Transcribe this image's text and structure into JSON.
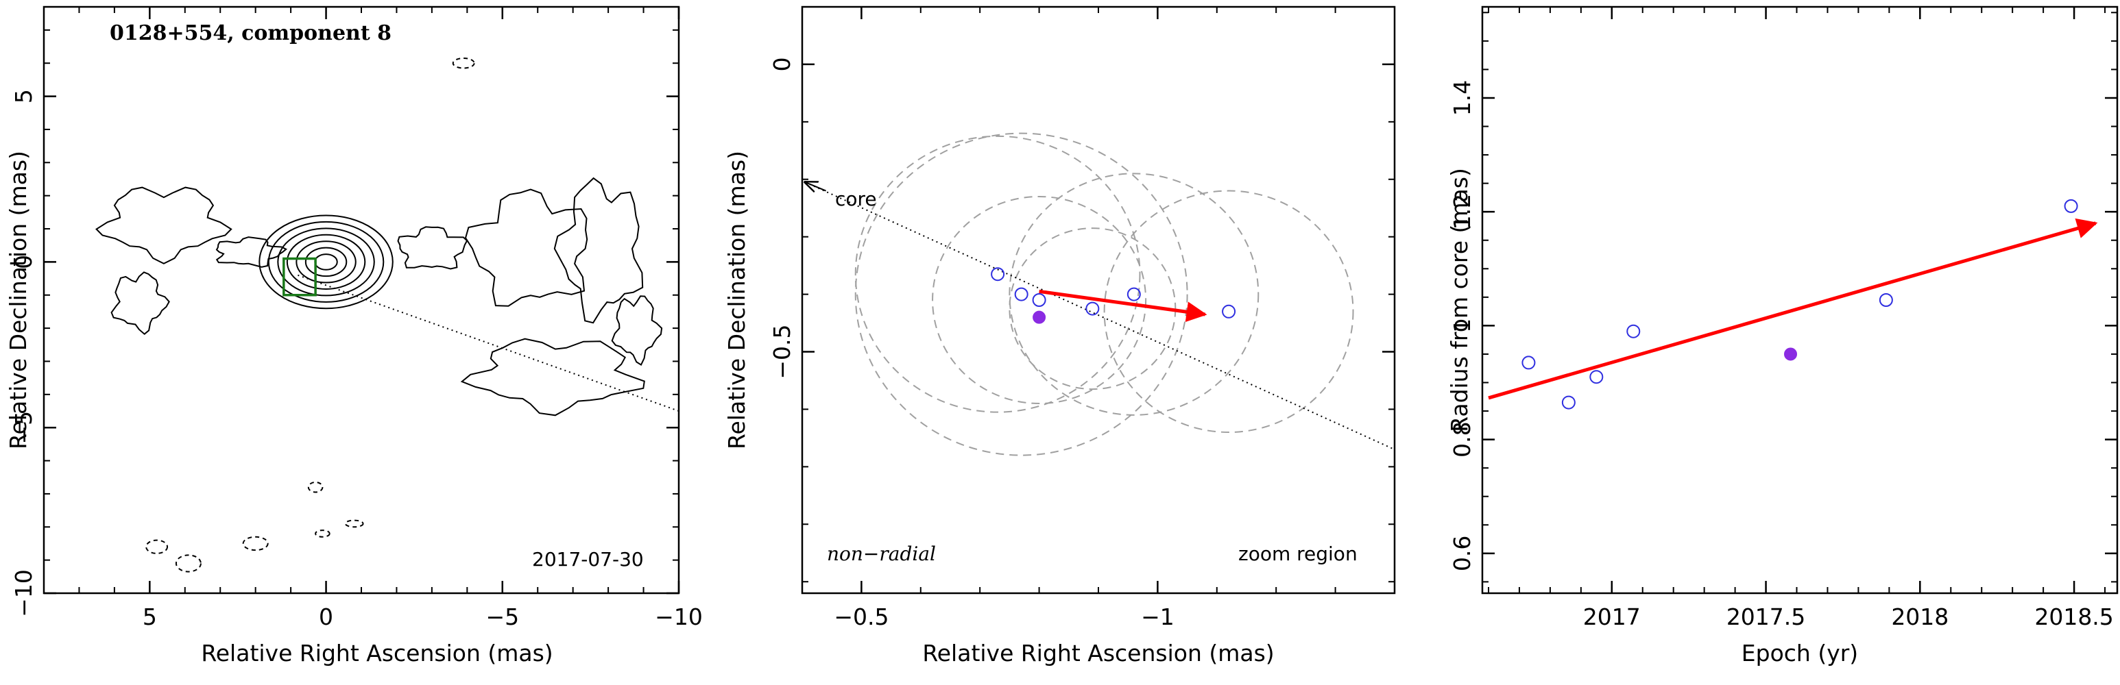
{
  "chart_data": [
    {
      "type": "contour",
      "title": "0128+554, component 8",
      "date_label": "2017-07-30",
      "xlabel": "Relative Right Ascension (mas)",
      "ylabel": "Relative Declination (mas)",
      "xlim": [
        8,
        -10
      ],
      "ylim": [
        -10,
        7.7
      ],
      "xticks": [
        5,
        0,
        -5,
        -10
      ],
      "xtick_labels": [
        "5",
        "0",
        "−5",
        "−10"
      ],
      "yticks": [
        -10,
        -5,
        0,
        5
      ],
      "ytick_labels": [
        "−10",
        "−5",
        "0",
        "5"
      ],
      "core_rings": [
        0.3,
        0.55,
        0.8,
        1.05,
        1.3,
        1.55,
        1.8
      ],
      "core_center": [
        0.0,
        0.0
      ],
      "component_box": {
        "x0": 1.2,
        "x1": 0.3,
        "y0": -1.0,
        "y1": 0.1
      },
      "direction_line": {
        "x": [
          0.8,
          -10
        ],
        "y": [
          -0.4,
          -4.5
        ]
      },
      "blobs": [
        {
          "x": 4.6,
          "y": 1.2,
          "rx": 1.6,
          "ry": 1.0
        },
        {
          "x": 5.3,
          "y": -1.2,
          "rx": 0.7,
          "ry": 0.8
        },
        {
          "x": 2.2,
          "y": 0.3,
          "rx": 0.9,
          "ry": 0.4
        },
        {
          "x": -3.0,
          "y": 0.4,
          "rx": 0.9,
          "ry": 0.6
        },
        {
          "x": -5.8,
          "y": 0.4,
          "rx": 1.6,
          "ry": 1.6
        },
        {
          "x": -7.8,
          "y": 0.4,
          "rx": 1.1,
          "ry": 1.9
        },
        {
          "x": -6.5,
          "y": -3.4,
          "rx": 2.2,
          "ry": 1.0
        },
        {
          "x": -8.8,
          "y": -2.0,
          "rx": 0.6,
          "ry": 0.9
        }
      ],
      "dashed_blobs": [
        {
          "x": -3.9,
          "y": 6.0,
          "rx": 0.3,
          "ry": 0.15
        },
        {
          "x": 4.8,
          "y": -8.6,
          "rx": 0.3,
          "ry": 0.2
        },
        {
          "x": 3.9,
          "y": -9.1,
          "rx": 0.35,
          "ry": 0.25
        },
        {
          "x": 2.0,
          "y": -8.5,
          "rx": 0.35,
          "ry": 0.2
        },
        {
          "x": 0.3,
          "y": -6.8,
          "rx": 0.2,
          "ry": 0.15
        },
        {
          "x": 0.1,
          "y": -8.2,
          "rx": 0.2,
          "ry": 0.1
        },
        {
          "x": -0.8,
          "y": -7.9,
          "rx": 0.25,
          "ry": 0.1
        }
      ]
    },
    {
      "type": "scatter",
      "title": "",
      "xlabel": "Relative Right Ascension (mas)",
      "ylabel": "Relative Declination (mas)",
      "xlim": [
        -0.4,
        -1.4
      ],
      "ylim": [
        -0.92,
        0.1
      ],
      "xticks": [
        -0.5,
        -1
      ],
      "xtick_labels": [
        "−0.5",
        "−1"
      ],
      "yticks": [
        -0.5,
        0
      ],
      "ytick_labels": [
        "−0.5",
        "0"
      ],
      "label_left": "non−radial",
      "label_right": "zoom region",
      "core_label": "core",
      "core_arrow": {
        "x0": -0.44,
        "y0": -0.22,
        "x1": -0.405,
        "y1": -0.205
      },
      "direction_line": {
        "x": [
          -0.405,
          -1.4
        ],
        "y": [
          -0.205,
          -0.67
        ]
      },
      "open_points": {
        "x": [
          -0.73,
          -0.77,
          -0.8,
          -0.89,
          -0.96,
          -1.12
        ],
        "y": [
          -0.365,
          -0.4,
          -0.41,
          -0.425,
          -0.4,
          -0.43
        ]
      },
      "filled_points": {
        "x": [
          -0.8
        ],
        "y": [
          -0.44
        ]
      },
      "fit_arrow": {
        "x0": -0.8,
        "y0": -0.395,
        "x1": -1.08,
        "y1": -0.435
      },
      "error_circles": [
        {
          "x": -0.73,
          "y": -0.365,
          "r": 0.24
        },
        {
          "x": -0.77,
          "y": -0.4,
          "r": 0.28
        },
        {
          "x": -0.8,
          "y": -0.41,
          "r": 0.18
        },
        {
          "x": -0.89,
          "y": -0.425,
          "r": 0.14
        },
        {
          "x": -0.96,
          "y": -0.4,
          "r": 0.21
        },
        {
          "x": -1.12,
          "y": -0.43,
          "r": 0.21
        }
      ]
    },
    {
      "type": "scatter",
      "title": "",
      "xlabel": "Epoch (yr)",
      "ylabel": "Radius from core (mas)",
      "xlim": [
        2016.58,
        2018.64
      ],
      "ylim": [
        0.53,
        1.56
      ],
      "xticks": [
        2017,
        2017.5,
        2018,
        2018.5
      ],
      "xtick_labels": [
        "2017",
        "2017.5",
        "2018",
        "2018.5"
      ],
      "yticks": [
        0.6,
        0.8,
        1.0,
        1.2,
        1.4
      ],
      "ytick_labels": [
        "0.6",
        "0.8",
        "1",
        "1.2",
        "1.4"
      ],
      "open_points": {
        "x": [
          2016.73,
          2016.86,
          2016.95,
          2017.07,
          2017.89,
          2018.49
        ],
        "y": [
          0.935,
          0.865,
          0.91,
          0.99,
          1.045,
          1.21
        ]
      },
      "filled_points": {
        "x": [
          2017.58
        ],
        "y": [
          0.95
        ]
      },
      "fit_arrow": {
        "x0": 2016.6,
        "y0": 0.873,
        "x1": 2018.57,
        "y1": 1.18
      }
    }
  ]
}
